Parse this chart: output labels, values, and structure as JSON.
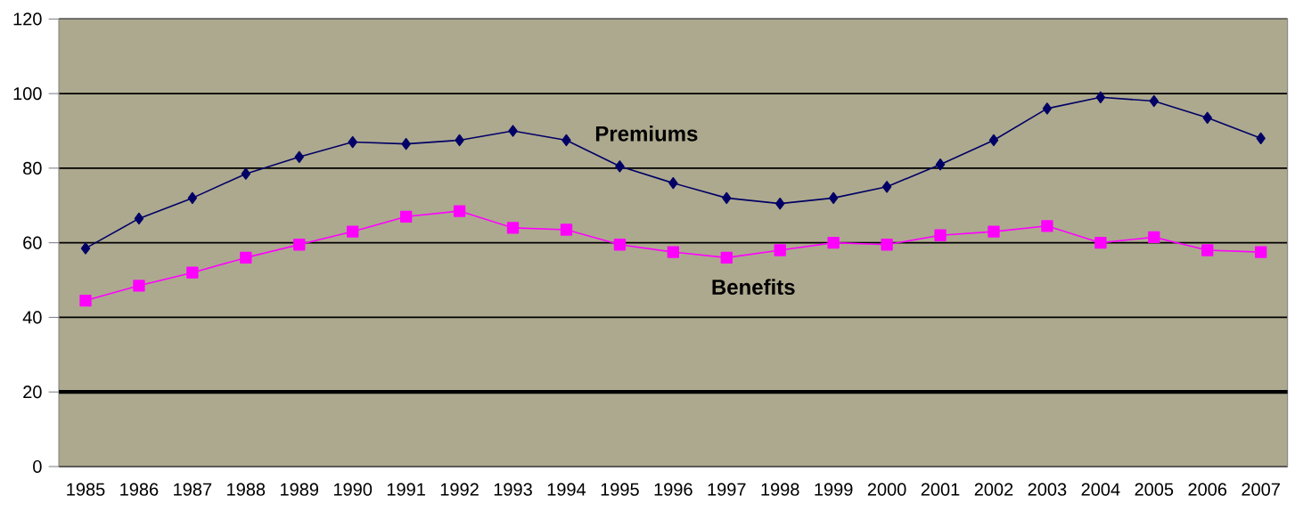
{
  "chart_data": {
    "type": "line",
    "categories": [
      "1985",
      "1986",
      "1987",
      "1988",
      "1989",
      "1990",
      "1991",
      "1992",
      "1993",
      "1994",
      "1995",
      "1996",
      "1997",
      "1998",
      "1999",
      "2000",
      "2001",
      "2002",
      "2003",
      "2004",
      "2005",
      "2006",
      "2007"
    ],
    "series": [
      {
        "name": "Premiums",
        "color": "#000066",
        "marker": "diamond",
        "values": [
          58.5,
          66.5,
          72,
          78.5,
          83,
          87,
          86.5,
          87.5,
          90,
          87.5,
          80.5,
          76,
          72,
          70.5,
          72,
          75,
          81,
          87.5,
          96,
          99,
          98,
          93.5,
          88
        ]
      },
      {
        "name": "Benefits",
        "color": "#ff00ff",
        "marker": "square",
        "values": [
          44.5,
          48.5,
          52,
          56,
          59.5,
          63,
          67,
          68.5,
          64,
          63.5,
          59.5,
          57.5,
          56,
          58,
          60,
          59.5,
          62,
          63,
          64.5,
          60,
          61.5,
          58,
          57.5
        ]
      }
    ],
    "ylim": [
      0,
      120
    ],
    "yticks": [
      0,
      20,
      40,
      60,
      80,
      100,
      120
    ],
    "grid": "y",
    "legend": false,
    "line_style": "solid",
    "ref_lines": [
      {
        "axis": "y",
        "value": 20,
        "color": "#000000"
      }
    ]
  }
}
